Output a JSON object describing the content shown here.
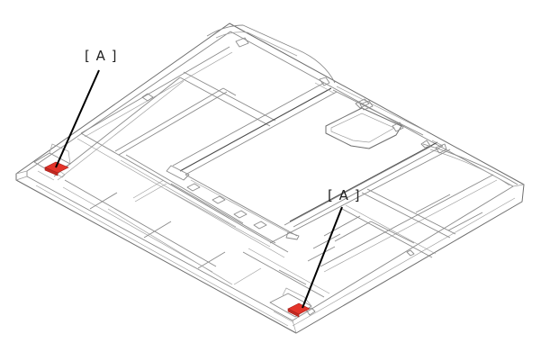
{
  "diagram": {
    "callouts": [
      {
        "label": "[ A ]",
        "part": "clip-rear-left",
        "color": "#e3342a"
      },
      {
        "label": "[ A ]",
        "part": "clip-front-right",
        "color": "#e3342a"
      }
    ],
    "colors": {
      "line": "#8a8a8a",
      "highlight": "#e3342a",
      "leader": "#000000",
      "background": "#ffffff"
    }
  }
}
